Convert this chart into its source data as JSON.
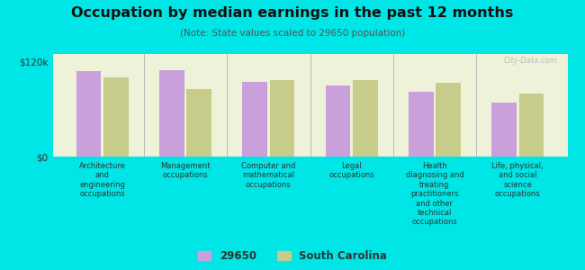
{
  "title": "Occupation by median earnings in the past 12 months",
  "subtitle": "(Note: State values scaled to 29650 population)",
  "background_color": "#00e5e5",
  "plot_bg_color": "#edf2d8",
  "bar_color_29650": "#c9a0dc",
  "bar_color_sc": "#c8cc8a",
  "ylim": [
    0,
    130000
  ],
  "ytick_vals": [
    0,
    120000
  ],
  "ytick_labels": [
    "$0",
    "$120k"
  ],
  "categories": [
    "Architecture\nand\nengineering\noccupations",
    "Management\noccupations",
    "Computer and\nmathematical\noccupations",
    "Legal\noccupations",
    "Health\ndiagnosing and\ntreating\npractitioners\nand other\ntechnical\noccupations",
    "Life, physical,\nand social\nscience\noccupations"
  ],
  "values_29650": [
    108000,
    110000,
    95000,
    90000,
    82000,
    68000
  ],
  "values_sc": [
    100000,
    85000,
    97000,
    97000,
    93000,
    80000
  ],
  "legend_labels": [
    "29650",
    "South Carolina"
  ],
  "watermark": "City-Data.com"
}
